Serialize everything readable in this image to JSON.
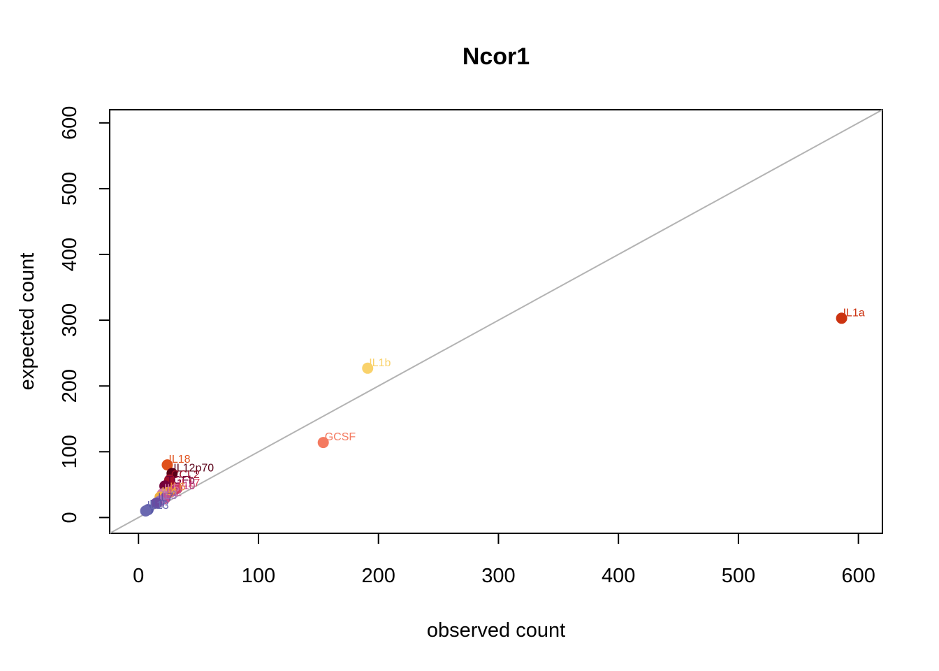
{
  "chart_data": {
    "type": "scatter",
    "title": "Ncor1",
    "xlabel": "observed count",
    "ylabel": "expected count",
    "xlim": [
      -24,
      620
    ],
    "ylim": [
      -24,
      620
    ],
    "xticks": [
      0,
      100,
      200,
      300,
      400,
      500,
      600
    ],
    "yticks": [
      0,
      100,
      200,
      300,
      400,
      500,
      600
    ],
    "reference_line": "y = x",
    "reference_line_color": "#b3b3b3",
    "grid": false,
    "points": [
      {
        "label": "IL1a",
        "x": 586,
        "y": 303,
        "color": "#cc3311"
      },
      {
        "label": "IL1b",
        "x": 191,
        "y": 227,
        "color": "#f9d26b"
      },
      {
        "label": "GCSF",
        "x": 154,
        "y": 114,
        "color": "#f47a60"
      },
      {
        "label": "IL18",
        "x": 24,
        "y": 80,
        "color": "#e0511b"
      },
      {
        "label": "IL12p70",
        "x": 28,
        "y": 67,
        "color": "#5a0018"
      },
      {
        "label": "CCL2",
        "x": 26,
        "y": 57,
        "color": "#a0102a"
      },
      {
        "label": "TGFb",
        "x": 22,
        "y": 48,
        "color": "#74003a"
      },
      {
        "label": "IL17",
        "x": 32,
        "y": 44,
        "color": "#d6405a"
      },
      {
        "label": "IL10",
        "x": 28,
        "y": 40,
        "color": "#c0307a"
      },
      {
        "label": "IL6",
        "x": 25,
        "y": 38,
        "color": "#e88a3a"
      },
      {
        "label": "IL5",
        "x": 20,
        "y": 36,
        "color": "#d47aa8"
      },
      {
        "label": "IL4",
        "x": 18,
        "y": 31,
        "color": "#f0b040"
      },
      {
        "label": "IL2",
        "x": 22,
        "y": 29,
        "color": "#c05090"
      },
      {
        "label": "IL3",
        "x": 18,
        "y": 25,
        "color": "#9a70b8"
      },
      {
        "label": "IL7",
        "x": 15,
        "y": 22,
        "color": "#6a4aa0"
      },
      {
        "label": "IL9",
        "x": 8,
        "y": 12,
        "color": "#5a5aa8"
      },
      {
        "label": "IL13",
        "x": 6,
        "y": 10,
        "color": "#6a68b0"
      }
    ]
  }
}
